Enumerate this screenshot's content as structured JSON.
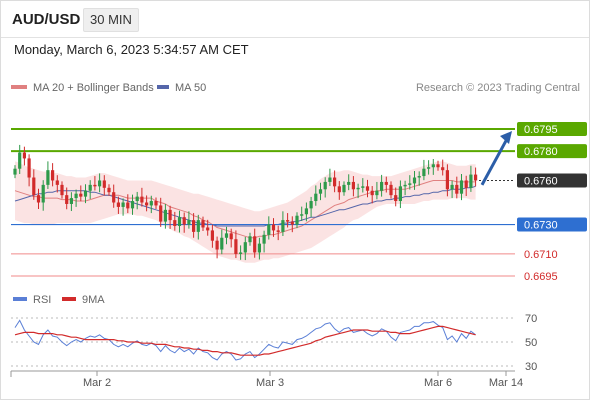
{
  "header": {
    "symbol": "AUD/USD",
    "interval": "30 MIN",
    "datetime": "Monday, March 6, 2023 5:34:57 AM CET"
  },
  "legend": {
    "bollinger_label": "MA 20 + Bollinger Bands",
    "ma50_label": "MA 50",
    "credit": "Research © 2023 Trading Central",
    "rsi_label": "RSI",
    "rsi_ma_label": "9MA"
  },
  "colors": {
    "bull": "#2e9a4a",
    "bear": "#d22b2b",
    "band_fill": "#fadcdc",
    "ma20": "#e08080",
    "ma50": "#5566aa",
    "green_level": "#5aa800",
    "blue_level": "#2e6fd1",
    "red_level": "#f08a8a",
    "current": "#333333",
    "arrow": "#2c5ea8",
    "rsi": "#5a7fd6",
    "rsi_ma": "#d22b2b"
  },
  "chart_data": [
    {
      "type": "candlestick",
      "x_axis": {
        "tick_labels": [
          "Mar 2",
          "Mar 3",
          "Mar 6",
          "Mar 14"
        ]
      },
      "ylim": [
        0.668,
        0.681
      ],
      "levels": [
        {
          "value": 0.6795,
          "label": "0.6795",
          "kind": "resistance"
        },
        {
          "value": 0.678,
          "label": "0.6780",
          "kind": "resistance"
        },
        {
          "value": 0.676,
          "label": "0.6760",
          "kind": "current"
        },
        {
          "value": 0.673,
          "label": "0.6730",
          "kind": "pivot"
        },
        {
          "value": 0.671,
          "label": "0.6710",
          "kind": "support"
        },
        {
          "value": 0.6695,
          "label": "0.6695",
          "kind": "support"
        }
      ],
      "forecast": {
        "from": 0.6757,
        "to": 0.6795
      },
      "close": [
        0.6768,
        0.6779,
        0.6775,
        0.6762,
        0.675,
        0.6745,
        0.6757,
        0.6767,
        0.676,
        0.6757,
        0.675,
        0.6744,
        0.6748,
        0.6751,
        0.6749,
        0.6753,
        0.6757,
        0.6756,
        0.676,
        0.6755,
        0.6752,
        0.6745,
        0.6742,
        0.6745,
        0.6741,
        0.6746,
        0.6749,
        0.6745,
        0.6743,
        0.6746,
        0.6743,
        0.6732,
        0.674,
        0.6733,
        0.6729,
        0.6735,
        0.673,
        0.6733,
        0.6725,
        0.6733,
        0.6728,
        0.6726,
        0.6719,
        0.6713,
        0.6721,
        0.6724,
        0.672,
        0.671,
        0.6711,
        0.6718,
        0.6722,
        0.6711,
        0.6717,
        0.6723,
        0.673,
        0.6726,
        0.6725,
        0.6733,
        0.6732,
        0.673,
        0.6736,
        0.6737,
        0.6741,
        0.6746,
        0.6751,
        0.6754,
        0.6759,
        0.6762,
        0.6756,
        0.6752,
        0.6757,
        0.6759,
        0.6754,
        0.6755,
        0.6756,
        0.6753,
        0.675,
        0.6753,
        0.6759,
        0.6757,
        0.675,
        0.6746,
        0.6756,
        0.6757,
        0.6758,
        0.6762,
        0.6763,
        0.6768,
        0.6769,
        0.6771,
        0.6769,
        0.6767,
        0.6754,
        0.6757,
        0.6751,
        0.676,
        0.6755,
        0.6764,
        0.676
      ],
      "high_low_spread": 0.0006,
      "ma20": [
        0.6753,
        0.6752,
        0.6751,
        0.675,
        0.6749,
        0.6749,
        0.6748,
        0.6748,
        0.6748,
        0.6748,
        0.6747,
        0.6747,
        0.6747,
        0.6746,
        0.6746,
        0.6746,
        0.6747,
        0.6748,
        0.6749,
        0.675,
        0.675,
        0.675,
        0.675,
        0.6749,
        0.6748,
        0.6748,
        0.6748,
        0.6748,
        0.6748,
        0.6748,
        0.6746,
        0.6745,
        0.6744,
        0.6742,
        0.6741,
        0.674,
        0.6739,
        0.6738,
        0.6736,
        0.6735,
        0.6733,
        0.6732,
        0.673,
        0.6728,
        0.6727,
        0.6726,
        0.6725,
        0.6724,
        0.6723,
        0.6722,
        0.6721,
        0.6721,
        0.6722,
        0.6722,
        0.6723,
        0.6723,
        0.6724,
        0.6725,
        0.6726,
        0.6727,
        0.6728,
        0.6729,
        0.6731,
        0.6733,
        0.6735,
        0.6737,
        0.6739,
        0.6741,
        0.6743,
        0.6744,
        0.6745,
        0.6747,
        0.6748,
        0.6749,
        0.675,
        0.6751,
        0.6752,
        0.6753,
        0.6753,
        0.6754,
        0.6754,
        0.6754,
        0.6754,
        0.6754,
        0.6755,
        0.6756,
        0.6757,
        0.6758,
        0.6759,
        0.676,
        0.676,
        0.676,
        0.676,
        0.676,
        0.6759,
        0.6759,
        0.6759,
        0.6759,
        0.6759
      ],
      "bb_upper": [
        0.6773,
        0.6772,
        0.677,
        0.6769,
        0.6768,
        0.6767,
        0.6766,
        0.6766,
        0.6765,
        0.6765,
        0.6764,
        0.6763,
        0.6763,
        0.6762,
        0.6762,
        0.6762,
        0.6763,
        0.6764,
        0.6765,
        0.6765,
        0.6764,
        0.6763,
        0.6762,
        0.6761,
        0.676,
        0.676,
        0.676,
        0.676,
        0.676,
        0.676,
        0.6759,
        0.6758,
        0.6757,
        0.6756,
        0.6755,
        0.6754,
        0.6753,
        0.6752,
        0.6751,
        0.6751,
        0.675,
        0.6749,
        0.6748,
        0.6747,
        0.6746,
        0.6745,
        0.6744,
        0.6743,
        0.6742,
        0.6741,
        0.674,
        0.6739,
        0.6739,
        0.674,
        0.6741,
        0.6742,
        0.6743,
        0.6744,
        0.6745,
        0.6747,
        0.6749,
        0.6751,
        0.6753,
        0.6756,
        0.6758,
        0.6761,
        0.6763,
        0.6765,
        0.6766,
        0.6766,
        0.6767,
        0.6767,
        0.6766,
        0.6765,
        0.6764,
        0.6764,
        0.6763,
        0.6763,
        0.6763,
        0.6763,
        0.6763,
        0.6764,
        0.6765,
        0.6766,
        0.6767,
        0.6768,
        0.6769,
        0.677,
        0.6771,
        0.6772,
        0.6773,
        0.6773,
        0.6772,
        0.6771,
        0.677,
        0.677,
        0.677,
        0.6771,
        0.6771
      ],
      "bb_lower": [
        0.6733,
        0.6732,
        0.6731,
        0.6731,
        0.673,
        0.673,
        0.673,
        0.673,
        0.673,
        0.6731,
        0.6731,
        0.6731,
        0.6731,
        0.6731,
        0.6731,
        0.6731,
        0.6731,
        0.6732,
        0.6733,
        0.6734,
        0.6735,
        0.6736,
        0.6737,
        0.6737,
        0.6737,
        0.6737,
        0.6736,
        0.6736,
        0.6735,
        0.6734,
        0.6733,
        0.6731,
        0.6729,
        0.6727,
        0.6725,
        0.6724,
        0.6722,
        0.6721,
        0.6719,
        0.6717,
        0.6715,
        0.6713,
        0.6711,
        0.6709,
        0.6708,
        0.6707,
        0.6706,
        0.6706,
        0.6705,
        0.6704,
        0.6704,
        0.6704,
        0.6705,
        0.6706,
        0.6706,
        0.6707,
        0.6707,
        0.6708,
        0.6709,
        0.671,
        0.6711,
        0.6712,
        0.6713,
        0.6714,
        0.6716,
        0.6718,
        0.672,
        0.6722,
        0.6724,
        0.6726,
        0.6728,
        0.6731,
        0.6733,
        0.6734,
        0.6736,
        0.6738,
        0.674,
        0.6742,
        0.6743,
        0.6744,
        0.6744,
        0.6744,
        0.6744,
        0.6744,
        0.6744,
        0.6744,
        0.6745,
        0.6746,
        0.6746,
        0.6747,
        0.6747,
        0.6747,
        0.6747,
        0.6748,
        0.6748,
        0.6748,
        0.6748,
        0.6747,
        0.6747
      ],
      "ma50": [
        0.6746,
        0.6747,
        0.6748,
        0.6749,
        0.675,
        0.6751,
        0.6751,
        0.6752,
        0.6752,
        0.6753,
        0.6753,
        0.6753,
        0.6753,
        0.6753,
        0.6753,
        0.6753,
        0.6752,
        0.6752,
        0.6751,
        0.675,
        0.675,
        0.6749,
        0.6748,
        0.6747,
        0.6746,
        0.6745,
        0.6744,
        0.6743,
        0.6742,
        0.6741,
        0.674,
        0.6739,
        0.6738,
        0.6737,
        0.6736,
        0.6735,
        0.6734,
        0.6733,
        0.6732,
        0.6731,
        0.6731,
        0.673,
        0.673,
        0.6729,
        0.6729,
        0.6729,
        0.6729,
        0.6729,
        0.6729,
        0.6729,
        0.6729,
        0.6729,
        0.6729,
        0.6729,
        0.673,
        0.673,
        0.673,
        0.6731,
        0.6731,
        0.6732,
        0.6732,
        0.6733,
        0.6734,
        0.6735,
        0.6735,
        0.6736,
        0.6737,
        0.6738,
        0.6739,
        0.674,
        0.674,
        0.6741,
        0.6742,
        0.6743,
        0.6744,
        0.6744,
        0.6745,
        0.6746,
        0.6746,
        0.6747,
        0.6747,
        0.6748,
        0.6748,
        0.6749,
        0.6749,
        0.675,
        0.675,
        0.6751,
        0.6751,
        0.6752,
        0.6752,
        0.6753,
        0.6753,
        0.6754,
        0.6754,
        0.6754,
        0.6755,
        0.6755,
        0.6756
      ]
    },
    {
      "type": "line",
      "yticks": [
        30,
        50,
        70
      ],
      "ylim": [
        25,
        75
      ],
      "series": [
        {
          "name": "RSI",
          "values": [
            62,
            68,
            60,
            55,
            50,
            48,
            56,
            60,
            55,
            54,
            50,
            47,
            50,
            52,
            50,
            53,
            55,
            54,
            56,
            53,
            52,
            48,
            46,
            48,
            46,
            49,
            51,
            48,
            47,
            49,
            47,
            42,
            47,
            43,
            41,
            45,
            42,
            44,
            40,
            45,
            42,
            41,
            37,
            35,
            40,
            42,
            40,
            35,
            36,
            40,
            42,
            37,
            40,
            44,
            48,
            46,
            45,
            50,
            49,
            48,
            52,
            53,
            55,
            58,
            61,
            62,
            65,
            66,
            61,
            58,
            61,
            62,
            58,
            59,
            60,
            57,
            55,
            57,
            61,
            59,
            54,
            51,
            58,
            59,
            60,
            63,
            63,
            66,
            66,
            67,
            64,
            62,
            52,
            55,
            50,
            57,
            53,
            59,
            56
          ]
        },
        {
          "name": "9MA",
          "values": [
            56,
            57,
            58,
            58,
            58,
            57,
            57,
            57,
            57,
            56,
            56,
            55,
            54,
            54,
            53,
            52,
            52,
            52,
            52,
            52,
            52,
            52,
            51,
            51,
            50,
            50,
            50,
            49,
            49,
            49,
            48,
            48,
            48,
            47,
            46,
            46,
            45,
            45,
            44,
            44,
            43,
            43,
            42,
            42,
            41,
            41,
            41,
            40,
            39,
            39,
            39,
            39,
            39,
            40,
            40,
            41,
            42,
            43,
            44,
            45,
            46,
            47,
            48,
            49,
            51,
            52,
            54,
            55,
            56,
            57,
            58,
            59,
            60,
            60,
            60,
            60,
            59,
            59,
            59,
            59,
            58,
            58,
            57,
            57,
            57,
            58,
            59,
            60,
            61,
            62,
            63,
            63,
            62,
            61,
            60,
            59,
            58,
            57,
            56
          ]
        }
      ]
    }
  ]
}
